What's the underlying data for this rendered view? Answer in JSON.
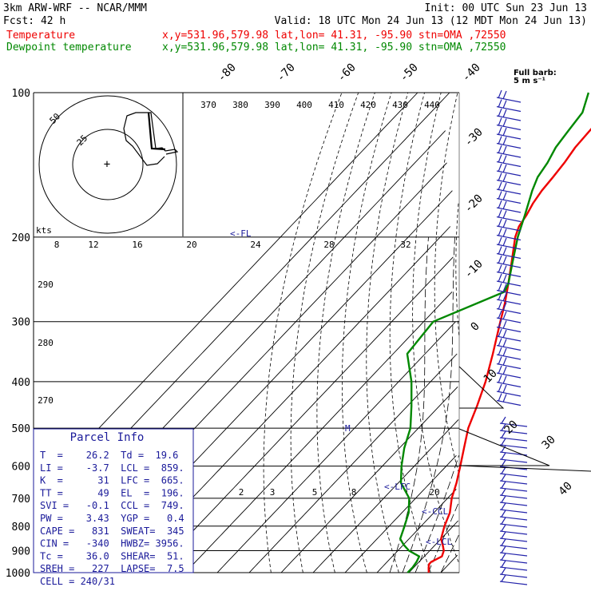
{
  "header": {
    "model": "3km ARW-WRF -- NCAR/MMM",
    "init": "Init: 00 UTC Sun 23 Jun 13",
    "fcst": "Fcst:   42 h",
    "valid": "Valid: 18 UTC Mon 24 Jun 13 (12 MDT Mon 24 Jun 13)",
    "legend": [
      {
        "name": "Temperature",
        "loc": "x,y=531.96,579.98   lat,lon= 41.31, -95.90   stn=OMA ,72550",
        "color": "#ee0000"
      },
      {
        "name": "Dewpoint temperature",
        "loc": "x,y=531.96,579.98   lat,lon= 41.31, -95.90   stn=OMA ,72550",
        "color": "#008800"
      }
    ]
  },
  "chart_data": {
    "type": "line",
    "subtype": "skew-T log-P sounding",
    "y_axis": {
      "label": "pressure (hPa)",
      "log_scale": true,
      "ylim": [
        1000,
        100
      ],
      "ticks": [
        "100",
        "200",
        "300",
        "400",
        "500",
        "600",
        "700",
        "800",
        "900",
        "1000"
      ]
    },
    "isotherm_labels": [
      "-80",
      "-70",
      "-60",
      "-50",
      "-40",
      "-30",
      "-20",
      "-10",
      "0",
      "10",
      "20",
      "30",
      "40"
    ],
    "theta_labels": [
      "290",
      "280",
      "270"
    ],
    "theta_e_labels": [
      "370",
      "380",
      "390",
      "400",
      "410",
      "420",
      "430",
      "440"
    ],
    "mixing_ratio_labels": [
      "2",
      "3",
      "5",
      "8",
      "20"
    ],
    "hodograph": {
      "units": "kts",
      "speed_labels": [
        "50",
        "25"
      ],
      "axis_labels": [
        "8",
        "12",
        "16",
        "20",
        "24",
        "28",
        "32"
      ]
    },
    "barb_key": {
      "line1": "Full barb:",
      "line2": "5 m s⁻¹"
    },
    "series": [
      {
        "name": "Temperature",
        "color": "#ee0000",
        "points": [
          [
            1000,
            26.2
          ],
          [
            975,
            24.6
          ],
          [
            960,
            23.8
          ],
          [
            950,
            23.8
          ],
          [
            925,
            25.5
          ],
          [
            900,
            24.4
          ],
          [
            875,
            22.3
          ],
          [
            850,
            20.0
          ],
          [
            800,
            17.3
          ],
          [
            750,
            15.0
          ],
          [
            700,
            11.3
          ],
          [
            650,
            8.2
          ],
          [
            600,
            4.4
          ],
          [
            550,
            0.2
          ],
          [
            500,
            -4.4
          ],
          [
            450,
            -8.2
          ],
          [
            400,
            -12.8
          ],
          [
            350,
            -18.8
          ],
          [
            300,
            -26.0
          ],
          [
            275,
            -30.0
          ],
          [
            250,
            -34.8
          ],
          [
            225,
            -40.3
          ],
          [
            200,
            -46.5
          ],
          [
            190,
            -48.5
          ],
          [
            180,
            -49.5
          ],
          [
            170,
            -51.0
          ],
          [
            160,
            -52.0
          ],
          [
            150,
            -52.5
          ],
          [
            140,
            -53.2
          ],
          [
            130,
            -54.4
          ],
          [
            120,
            -54.8
          ],
          [
            110,
            -55.3
          ],
          [
            100,
            -56.0
          ]
        ]
      },
      {
        "name": "Dewpoint temperature",
        "color": "#008800",
        "points": [
          [
            1000,
            19.6
          ],
          [
            975,
            19.6
          ],
          [
            950,
            19.2
          ],
          [
            925,
            18.4
          ],
          [
            900,
            13.5
          ],
          [
            875,
            10.1
          ],
          [
            850,
            7.2
          ],
          [
            800,
            4.8
          ],
          [
            750,
            2.1
          ],
          [
            700,
            -2.0
          ],
          [
            650,
            -9.2
          ],
          [
            600,
            -14.0
          ],
          [
            550,
            -18.5
          ],
          [
            500,
            -22.5
          ],
          [
            450,
            -28.7
          ],
          [
            400,
            -36.0
          ],
          [
            350,
            -45.6
          ],
          [
            300,
            -47.0
          ],
          [
            260,
            -33.6
          ],
          [
            250,
            -34.8
          ],
          [
            225,
            -40.0
          ],
          [
            200,
            -45.7
          ],
          [
            180,
            -50.0
          ],
          [
            160,
            -55.0
          ],
          [
            150,
            -57.3
          ],
          [
            140,
            -58.5
          ],
          [
            130,
            -60.5
          ],
          [
            120,
            -61.5
          ],
          [
            110,
            -62.5
          ],
          [
            100,
            -66.5
          ]
        ]
      }
    ],
    "annotations": [
      {
        "text": "<-FL",
        "p": 200
      },
      {
        "text": "M",
        "p": 500
      },
      {
        "text": "<-LFC",
        "p": 665
      },
      {
        "text": "<-CCL",
        "p": 749
      },
      {
        "text": "<-LCL",
        "p": 859
      }
    ]
  },
  "parcel": {
    "title": "Parcel Info",
    "rows": [
      "T  =    26.2  Td =  19.6",
      "LI =    -3.7  LCL =  859.",
      "K  =      31  LFC =  665.",
      "TT =      49  EL  =  196.",
      "SVI =   -0.1  CCL =  749.",
      "PW =    3.43  YGP =   0.4",
      "CAPE =   831  SWEAT=  345",
      "CIN =   -340  HWBZ= 3956.",
      "Tc =    36.0  SHEAR=  51.",
      "SREH =   227  LAPSE=  7.5",
      "CELL = 240/31"
    ]
  },
  "colors": {
    "temperature": "#ee0000",
    "dewpoint": "#008800",
    "background_lines": "#000000",
    "barbs": "#2222aa",
    "parcel_box": "#1a1a9a"
  }
}
